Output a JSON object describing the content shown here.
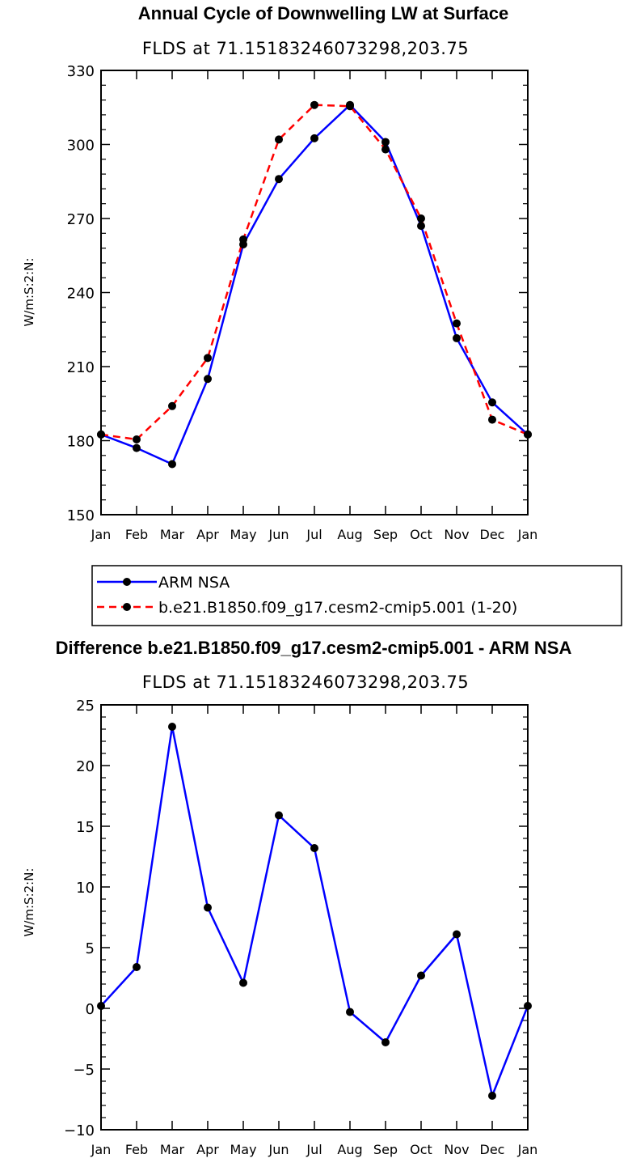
{
  "chart_data": [
    {
      "type": "line",
      "title": "Annual Cycle of Downwelling LW at Surface",
      "subtitle": "FLDS at 71.15183246073298,203.75",
      "ylabel": "W/m:S:2:N:",
      "xlabel": "",
      "categories": [
        "Jan",
        "Feb",
        "Mar",
        "Apr",
        "May",
        "Jun",
        "Jul",
        "Aug",
        "Sep",
        "Oct",
        "Nov",
        "Dec",
        "Jan"
      ],
      "ylim": [
        150,
        330
      ],
      "yticks": [
        "150",
        "180",
        "210",
        "240",
        "270",
        "300",
        "330"
      ],
      "series": [
        {
          "name": "ARM NSA",
          "color": "#0000ff",
          "dash": "solid",
          "values": [
            182.5,
            177,
            170.5,
            205,
            259.5,
            286,
            302.5,
            316,
            301,
            267,
            221.5,
            195.5,
            182.5
          ]
        },
        {
          "name": "b.e21.B1850.f09_g17.cesm2-cmip5.001 (1-20)",
          "color": "#ff0000",
          "dash": "dashed",
          "values": [
            182.5,
            180.5,
            194,
            213.5,
            261.5,
            302,
            316,
            315.5,
            298,
            270,
            227.5,
            188.5,
            182.5
          ]
        }
      ],
      "legend": {
        "position": "below"
      }
    },
    {
      "type": "line",
      "title": "Difference b.e21.B1850.f09_g17.cesm2-cmip5.001 - ARM NSA",
      "subtitle": "FLDS at 71.15183246073298,203.75",
      "ylabel": "W/m:S:2:N:",
      "xlabel": "",
      "categories": [
        "Jan",
        "Feb",
        "Mar",
        "Apr",
        "May",
        "Jun",
        "Jul",
        "Aug",
        "Sep",
        "Oct",
        "Nov",
        "Dec",
        "Jan"
      ],
      "ylim": [
        -10,
        25
      ],
      "yticks": [
        "−10",
        "−5",
        "0",
        "5",
        "10",
        "15",
        "20",
        "25"
      ],
      "series": [
        {
          "name": "Difference",
          "color": "#0000ff",
          "dash": "solid",
          "values": [
            0.2,
            3.4,
            23.2,
            8.3,
            2.1,
            15.9,
            13.2,
            -0.3,
            -2.8,
            2.7,
            6.1,
            -7.2,
            0.2
          ]
        }
      ]
    }
  ]
}
